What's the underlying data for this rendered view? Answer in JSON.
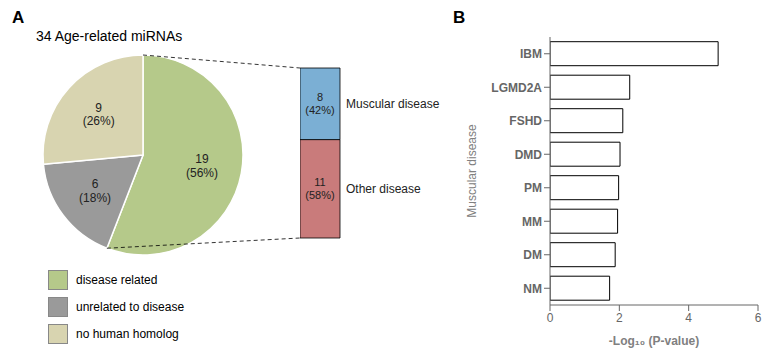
{
  "chart_data": [
    {
      "type": "pie",
      "title": "34 Age-related miRNAs",
      "annotations": [
        "A"
      ],
      "categories": [
        "disease related",
        "unrelated to disease",
        "no human homolog"
      ],
      "values": [
        19,
        6,
        9
      ],
      "value_labels": [
        "19\n(56%)",
        "6\n(18%)",
        "9\n(26%)"
      ],
      "colors": [
        "#b5c98a",
        "#9a9a9a",
        "#d8d4b0"
      ],
      "data_labels": true,
      "legend": "bottom"
    },
    {
      "type": "bar",
      "stacked": true,
      "categories": [
        null
      ],
      "series": [
        {
          "name": "Muscular disease",
          "color": "#7bafd4",
          "values": [
            8
          ],
          "value_labels": [
            "8\n(42%)"
          ]
        },
        {
          "name": "Other disease",
          "color": "#c97b7b",
          "values": [
            11
          ],
          "value_labels": [
            "11\n(58%)"
          ]
        }
      ],
      "data_labels": true,
      "tick_labels": false,
      "legend": "right"
    },
    {
      "type": "bar",
      "orientation": "horizontal",
      "annotations": [
        "B"
      ],
      "categories": [
        "IBM",
        "LGMD2A",
        "FSHD",
        "DMD",
        "PM",
        "MM",
        "DM",
        "NM"
      ],
      "values": [
        4.85,
        2.3,
        2.1,
        2.02,
        1.98,
        1.95,
        1.88,
        1.72
      ],
      "color": "#ffffff",
      "xlabel": "-Log₁₀ (P-value)",
      "ylabel": "Muscular disease",
      "xlim": [
        0,
        6
      ],
      "xticks": [
        0,
        2,
        4,
        6
      ]
    }
  ]
}
